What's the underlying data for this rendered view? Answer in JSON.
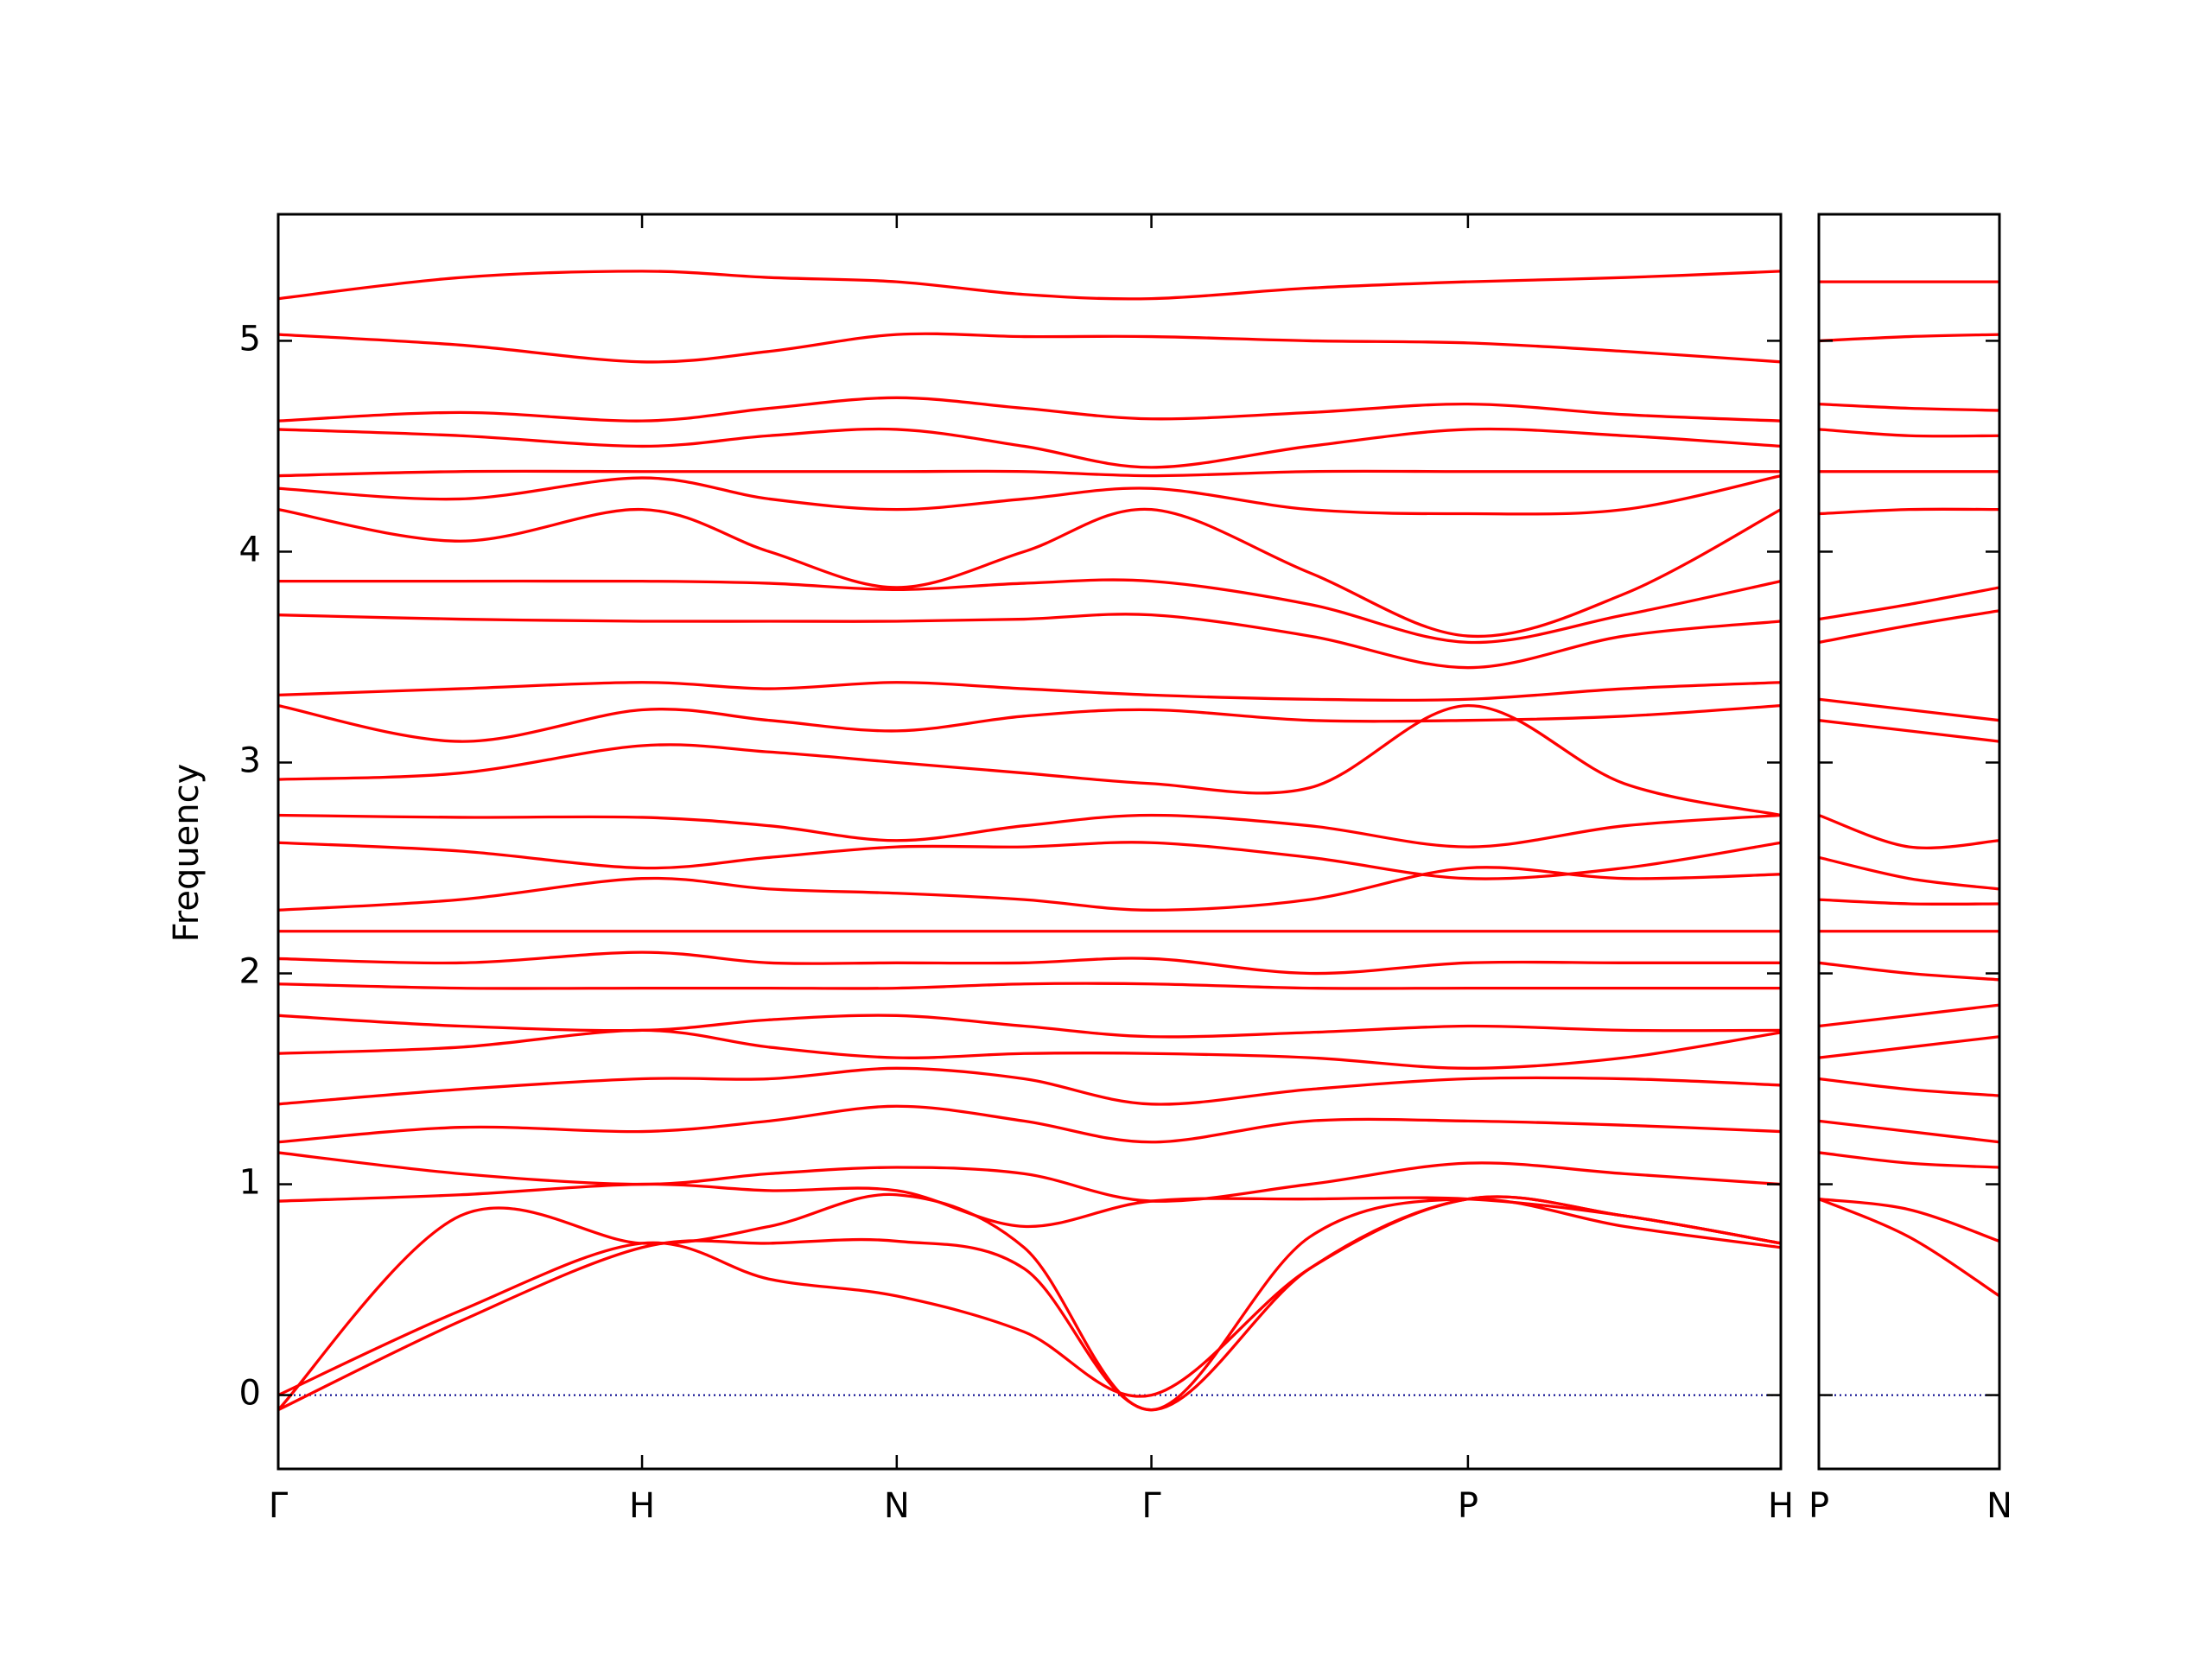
{
  "chart_data": [
    {
      "type": "line",
      "y_label": "Frequency",
      "color": "#ff0000",
      "hline": 0,
      "hline_color": "#00008b",
      "xlim": [
        0,
        4.13
      ],
      "ylim": [
        -0.35,
        5.6
      ],
      "yticks": [
        0,
        1,
        2,
        3,
        4,
        5
      ],
      "xticks": [
        {
          "value": 0,
          "label": "Γ"
        },
        {
          "value": 1.0,
          "label": "H"
        },
        {
          "value": 1.7,
          "label": "N"
        },
        {
          "value": 2.4,
          "label": "Γ"
        },
        {
          "value": 3.27,
          "label": "P"
        },
        {
          "value": 4.13,
          "label": "H"
        }
      ],
      "x": [
        0,
        0.5,
        1.0,
        1.35,
        1.7,
        2.05,
        2.4,
        2.835,
        3.27,
        3.7,
        4.13
      ],
      "series": [
        {
          "values": [
            5.2,
            5.3,
            5.33,
            5.3,
            5.28,
            5.22,
            5.2,
            5.25,
            5.28,
            5.3,
            5.33
          ]
        },
        {
          "values": [
            5.03,
            4.98,
            4.9,
            4.95,
            5.03,
            5.02,
            5.02,
            5.0,
            4.99,
            4.95,
            4.9
          ]
        },
        {
          "values": [
            4.62,
            4.66,
            4.62,
            4.68,
            4.73,
            4.68,
            4.63,
            4.66,
            4.7,
            4.65,
            4.62
          ]
        },
        {
          "values": [
            4.58,
            4.55,
            4.5,
            4.55,
            4.58,
            4.5,
            4.4,
            4.5,
            4.58,
            4.55,
            4.5
          ]
        },
        {
          "values": [
            4.36,
            4.38,
            4.38,
            4.38,
            4.38,
            4.38,
            4.36,
            4.38,
            4.38,
            4.38,
            4.38
          ]
        },
        {
          "values": [
            4.2,
            4.05,
            4.2,
            4.0,
            3.83,
            4.0,
            4.2,
            3.9,
            3.6,
            3.8,
            4.2
          ]
        },
        {
          "values": [
            4.3,
            4.25,
            4.35,
            4.25,
            4.2,
            4.25,
            4.3,
            4.2,
            4.18,
            4.2,
            4.36
          ]
        },
        {
          "values": [
            3.86,
            3.86,
            3.86,
            3.85,
            3.82,
            3.85,
            3.86,
            3.75,
            3.57,
            3.7,
            3.86
          ]
        },
        {
          "values": [
            3.7,
            3.68,
            3.67,
            3.67,
            3.67,
            3.68,
            3.7,
            3.6,
            3.45,
            3.6,
            3.67
          ]
        },
        {
          "values": [
            3.32,
            3.35,
            3.38,
            3.35,
            3.38,
            3.35,
            3.32,
            3.3,
            3.3,
            3.35,
            3.38
          ]
        },
        {
          "values": [
            3.27,
            3.1,
            3.25,
            3.2,
            3.15,
            3.22,
            3.25,
            3.2,
            3.2,
            3.22,
            3.27
          ]
        },
        {
          "values": [
            2.92,
            2.95,
            3.08,
            3.05,
            3.0,
            2.95,
            2.9,
            2.88,
            3.27,
            2.9,
            2.75
          ]
        },
        {
          "values": [
            2.75,
            2.74,
            2.74,
            2.7,
            2.63,
            2.7,
            2.75,
            2.7,
            2.6,
            2.7,
            2.75
          ]
        },
        {
          "values": [
            2.62,
            2.58,
            2.5,
            2.55,
            2.6,
            2.6,
            2.62,
            2.55,
            2.45,
            2.5,
            2.62
          ]
        },
        {
          "values": [
            2.3,
            2.35,
            2.45,
            2.4,
            2.38,
            2.35,
            2.3,
            2.35,
            2.5,
            2.45,
            2.47
          ]
        },
        {
          "values": [
            2.2,
            2.2,
            2.2,
            2.2,
            2.2,
            2.2,
            2.2,
            2.2,
            2.2,
            2.2,
            2.2
          ]
        },
        {
          "values": [
            2.07,
            2.05,
            2.1,
            2.05,
            2.05,
            2.05,
            2.07,
            2.0,
            2.05,
            2.05,
            2.05
          ]
        },
        {
          "values": [
            1.95,
            1.93,
            1.93,
            1.93,
            1.93,
            1.95,
            1.95,
            1.93,
            1.93,
            1.93,
            1.93
          ]
        },
        {
          "values": [
            1.8,
            1.75,
            1.73,
            1.78,
            1.8,
            1.75,
            1.7,
            1.72,
            1.75,
            1.73,
            1.73
          ]
        },
        {
          "values": [
            1.62,
            1.65,
            1.73,
            1.65,
            1.6,
            1.62,
            1.62,
            1.6,
            1.55,
            1.6,
            1.72
          ]
        },
        {
          "values": [
            1.38,
            1.45,
            1.5,
            1.5,
            1.55,
            1.5,
            1.38,
            1.45,
            1.5,
            1.5,
            1.47
          ]
        },
        {
          "values": [
            1.2,
            1.27,
            1.25,
            1.3,
            1.37,
            1.3,
            1.2,
            1.3,
            1.3,
            1.28,
            1.25
          ]
        },
        {
          "values": [
            1.15,
            1.05,
            1.0,
            1.05,
            1.08,
            1.05,
            0.92,
            1.0,
            1.1,
            1.05,
            1.0
          ]
        },
        {
          "values": [
            0.92,
            0.95,
            1.0,
            0.97,
            0.97,
            0.8,
            0.92,
            0.93,
            0.93,
            0.85,
            0.72
          ]
        },
        {
          "values": [
            -0.07,
            0.85,
            0.72,
            0.8,
            0.95,
            0.7,
            -0.07,
            0.75,
            0.93,
            0.8,
            0.7
          ]
        },
        {
          "values": [
            -0.07,
            0.35,
            0.7,
            0.72,
            0.73,
            0.6,
            -0.07,
            0.6,
            0.93,
            0.85,
            0.72
          ]
        },
        {
          "values": [
            0,
            0.4,
            0.72,
            0.55,
            0.47,
            0.3,
            0,
            0.6,
            0.93,
            0.85,
            0.72
          ]
        }
      ]
    },
    {
      "type": "line",
      "color": "#ff0000",
      "xlim": [
        0,
        0.5
      ],
      "xticks": [
        {
          "value": 0,
          "label": "P"
        },
        {
          "value": 0.5,
          "label": "N"
        }
      ],
      "x": [
        0,
        0.25,
        0.5
      ],
      "series": [
        {
          "values": [
            5.28,
            5.28,
            5.28
          ]
        },
        {
          "values": [
            5.0,
            5.02,
            5.03
          ]
        },
        {
          "values": [
            4.7,
            4.68,
            4.67
          ]
        },
        {
          "values": [
            4.58,
            4.55,
            4.55
          ]
        },
        {
          "values": [
            4.38,
            4.38,
            4.38
          ]
        },
        {
          "values": [
            4.18,
            4.2,
            4.2
          ]
        },
        {
          "values": [
            3.68,
            3.75,
            3.83
          ]
        },
        {
          "values": [
            3.57,
            3.65,
            3.72
          ]
        },
        {
          "values": [
            3.3,
            3.25,
            3.2
          ]
        },
        {
          "values": [
            3.2,
            3.15,
            3.1
          ]
        },
        {
          "values": [
            2.75,
            2.6,
            2.63
          ]
        },
        {
          "values": [
            2.55,
            2.45,
            2.4
          ]
        },
        {
          "values": [
            2.35,
            2.33,
            2.33
          ]
        },
        {
          "values": [
            2.2,
            2.2,
            2.2
          ]
        },
        {
          "values": [
            2.05,
            2.0,
            1.97
          ]
        },
        {
          "values": [
            1.75,
            1.8,
            1.85
          ]
        },
        {
          "values": [
            1.6,
            1.65,
            1.7
          ]
        },
        {
          "values": [
            1.5,
            1.45,
            1.42
          ]
        },
        {
          "values": [
            1.3,
            1.25,
            1.2
          ]
        },
        {
          "values": [
            1.15,
            1.1,
            1.08
          ]
        },
        {
          "values": [
            0.93,
            0.88,
            0.73
          ]
        },
        {
          "values": [
            0.93,
            0.75,
            0.47
          ]
        }
      ]
    }
  ]
}
